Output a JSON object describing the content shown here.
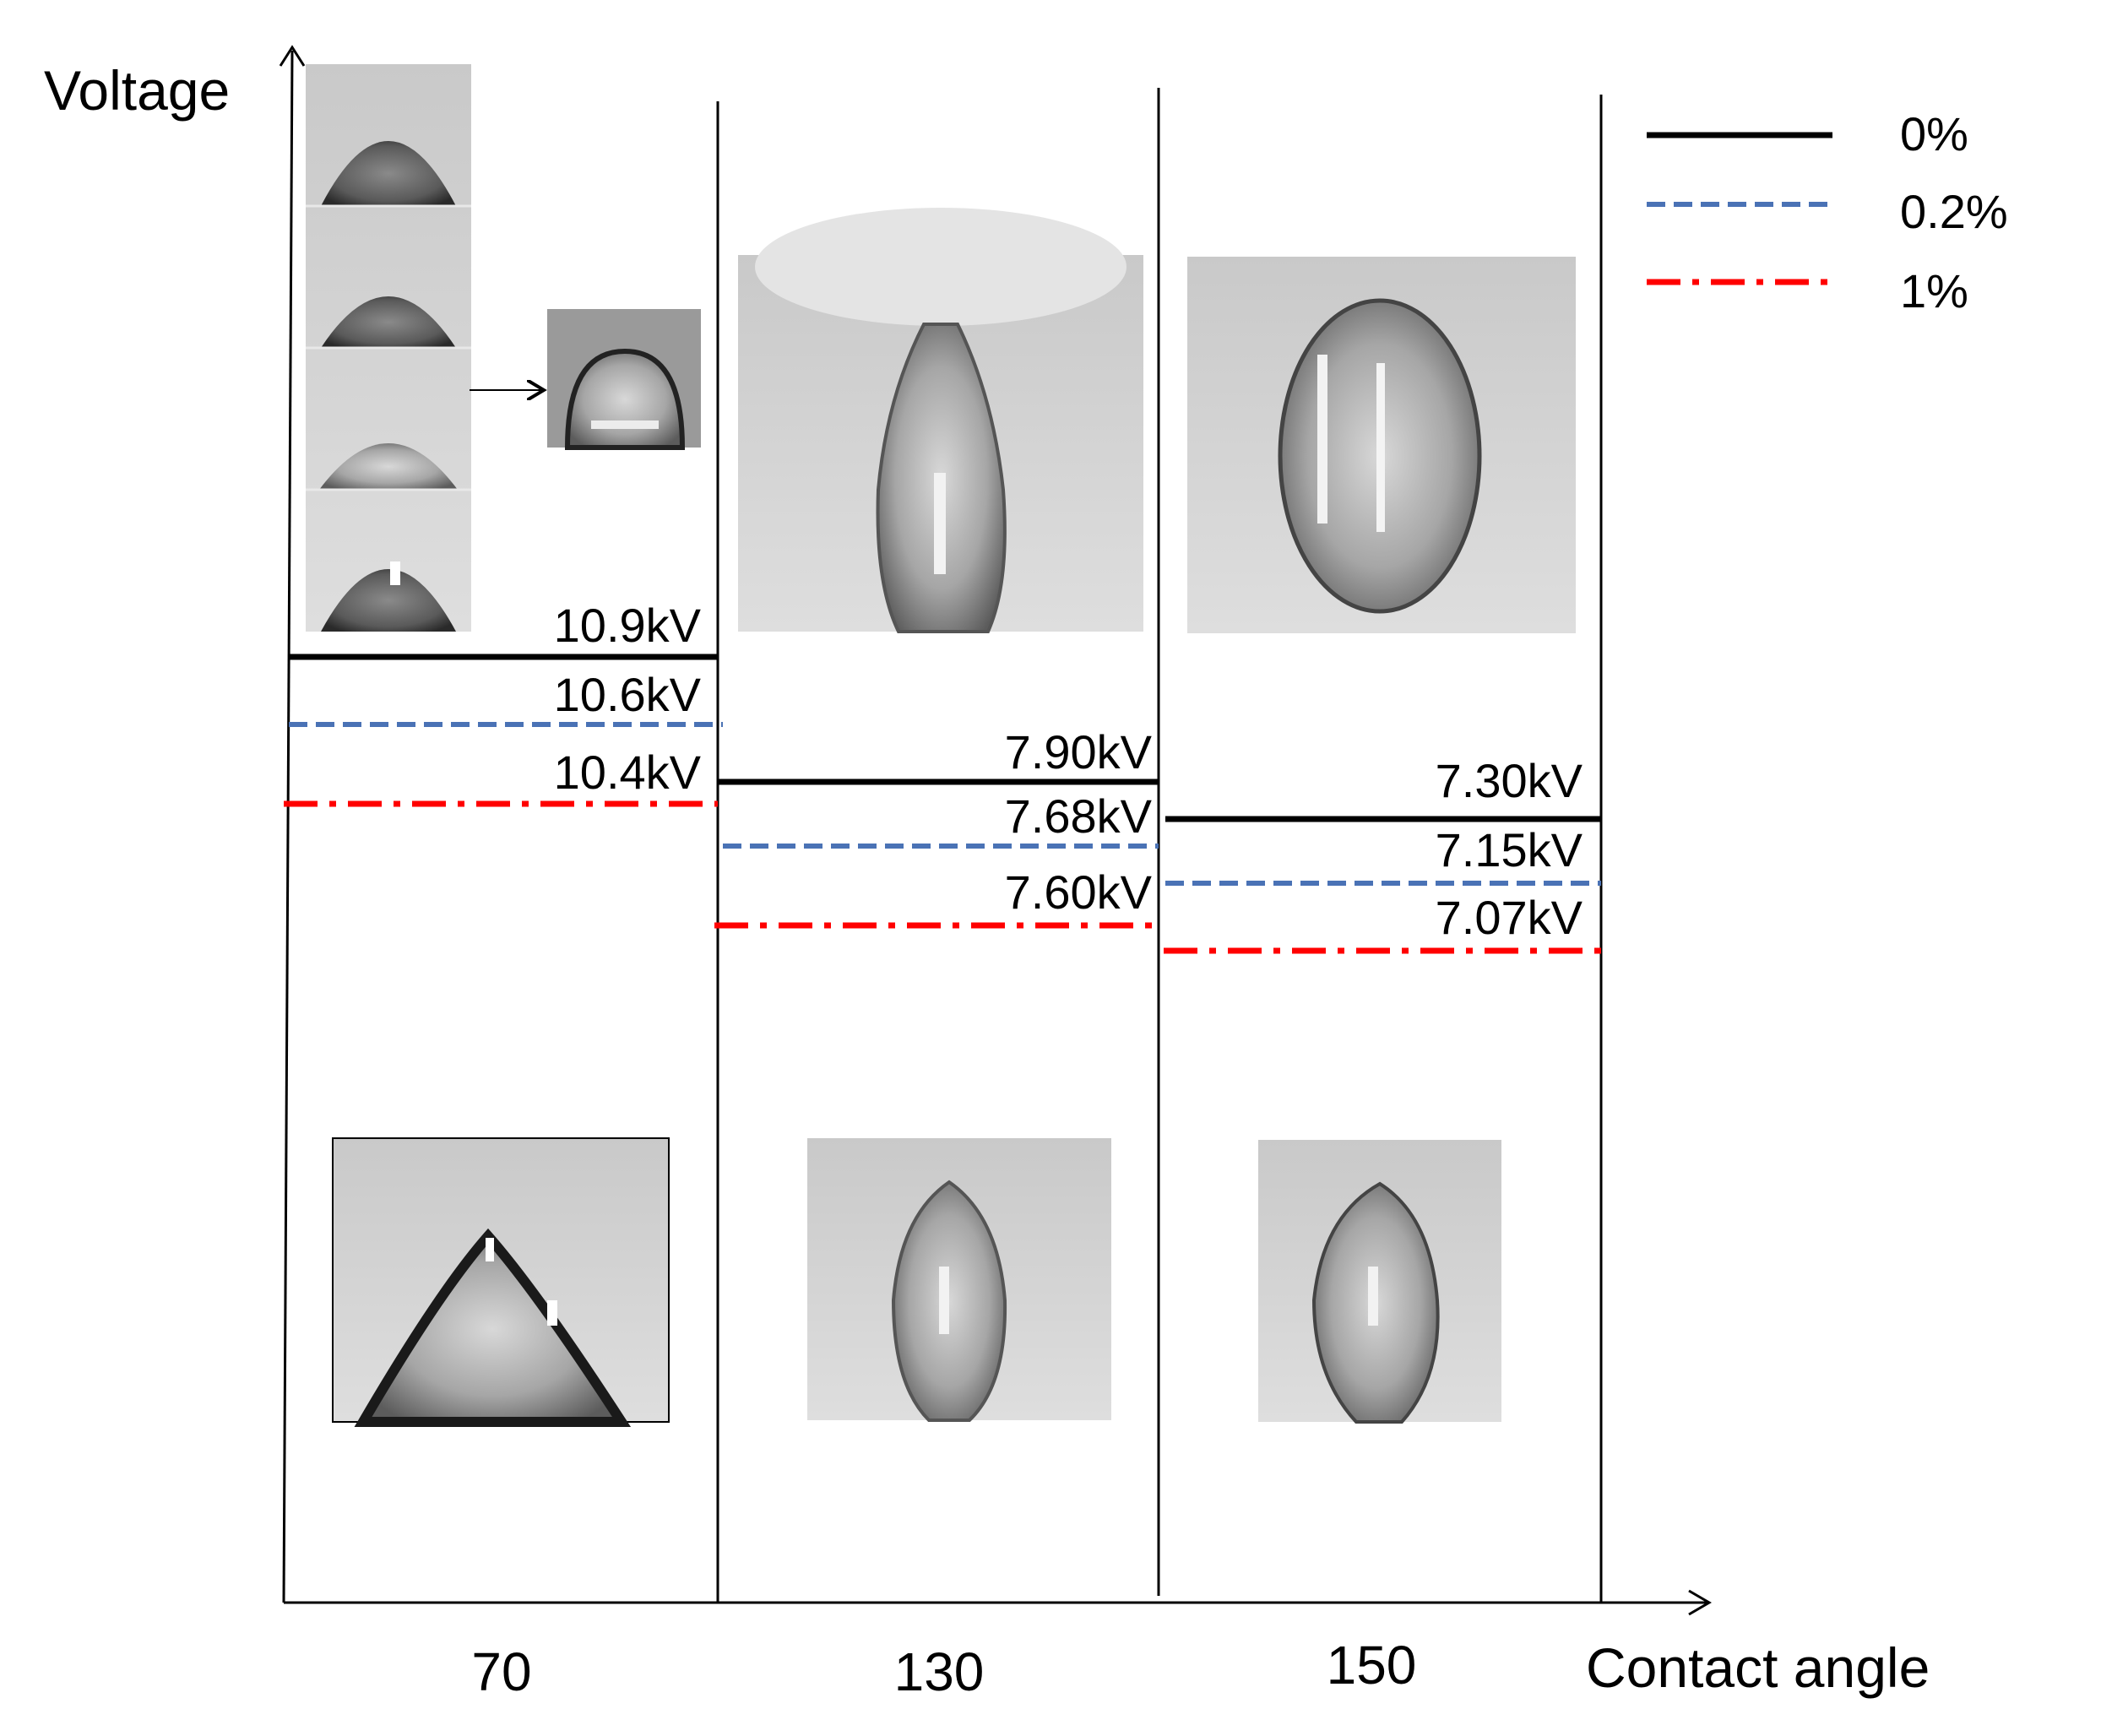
{
  "axes": {
    "y_label": "Voltage",
    "x_label": "Contact angle"
  },
  "legend": [
    {
      "label": "0%",
      "style": "solid",
      "color": "#000000"
    },
    {
      "label": "0.2%",
      "style": "dashed",
      "color": "#4a72b5"
    },
    {
      "label": "1%",
      "style": "dash-dot",
      "color": "#ff0000"
    }
  ],
  "chart_data": {
    "type": "step",
    "x_title": "Contact angle",
    "y_title": "Voltage",
    "categories": [
      "70",
      "130",
      "150"
    ],
    "series": [
      {
        "name": "0%",
        "values": [
          10.9,
          7.9,
          7.3
        ],
        "labels": [
          "10.9kV",
          "7.90kV",
          "7.30kV"
        ]
      },
      {
        "name": "0.2%",
        "values": [
          10.6,
          7.68,
          7.15
        ],
        "labels": [
          "10.6kV",
          "7.68kV",
          "7.15kV"
        ]
      },
      {
        "name": "1%",
        "values": [
          10.4,
          7.6,
          7.07
        ],
        "labels": [
          "10.4kV",
          "7.60kV",
          "7.07kV"
        ]
      }
    ]
  },
  "images": [
    {
      "name": "droplet-stack-70"
    },
    {
      "name": "droplet-arrow-result-70"
    },
    {
      "name": "droplet-top-130"
    },
    {
      "name": "droplet-top-150"
    },
    {
      "name": "droplet-bottom-70"
    },
    {
      "name": "droplet-bottom-130"
    },
    {
      "name": "droplet-bottom-150"
    }
  ]
}
